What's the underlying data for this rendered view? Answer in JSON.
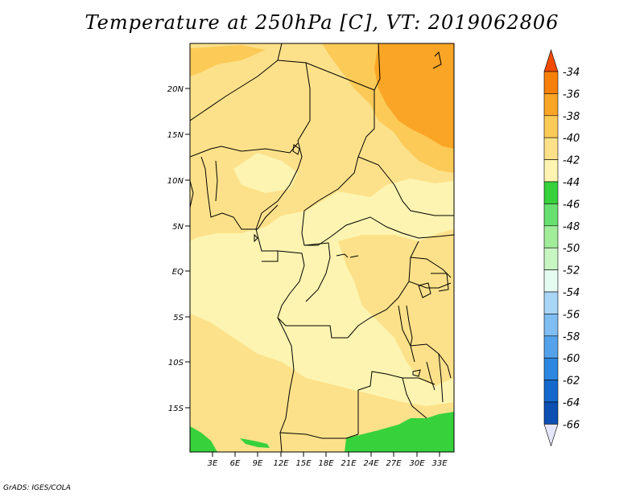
{
  "title": "Temperature at 250hPa [C], VT: 2019062806",
  "credit": "GrADS: IGES/COLA",
  "axes": {
    "lat_ticks": [
      "20N",
      "15N",
      "10N",
      "5N",
      "EQ",
      "5S",
      "10S",
      "15S"
    ],
    "lon_ticks": [
      "3E",
      "6E",
      "9E",
      "12E",
      "15E",
      "18E",
      "21E",
      "24E",
      "27E",
      "30E",
      "33E"
    ]
  },
  "colorbar": {
    "labels": [
      "-34",
      "-36",
      "-38",
      "-40",
      "-42",
      "-44",
      "-46",
      "-48",
      "-50",
      "-52",
      "-54",
      "-56",
      "-58",
      "-60",
      "-62",
      "-64",
      "-66"
    ],
    "colors": [
      "#f04b00",
      "#f7800a",
      "#fba526",
      "#fcca57",
      "#fde18a",
      "#fcf4b0",
      "#37d13c",
      "#68e070",
      "#a2ed9a",
      "#c8f6c2",
      "#e5fbf2",
      "#a9d5f7",
      "#7fbdf2",
      "#54a3ea",
      "#2d87e0",
      "#1569cd",
      "#0d4fb3",
      "#0a0f6e"
    ],
    "top_arrow_color": "#f04b00",
    "bottom_arrow_color": "#e6e6fa"
  },
  "field_colors": {
    "c42_44": "#fcf4b0",
    "c40_42": "#fde18a",
    "c38_40": "#fcca57",
    "c36_38": "#fba526",
    "c44_46": "#37d13c"
  }
}
